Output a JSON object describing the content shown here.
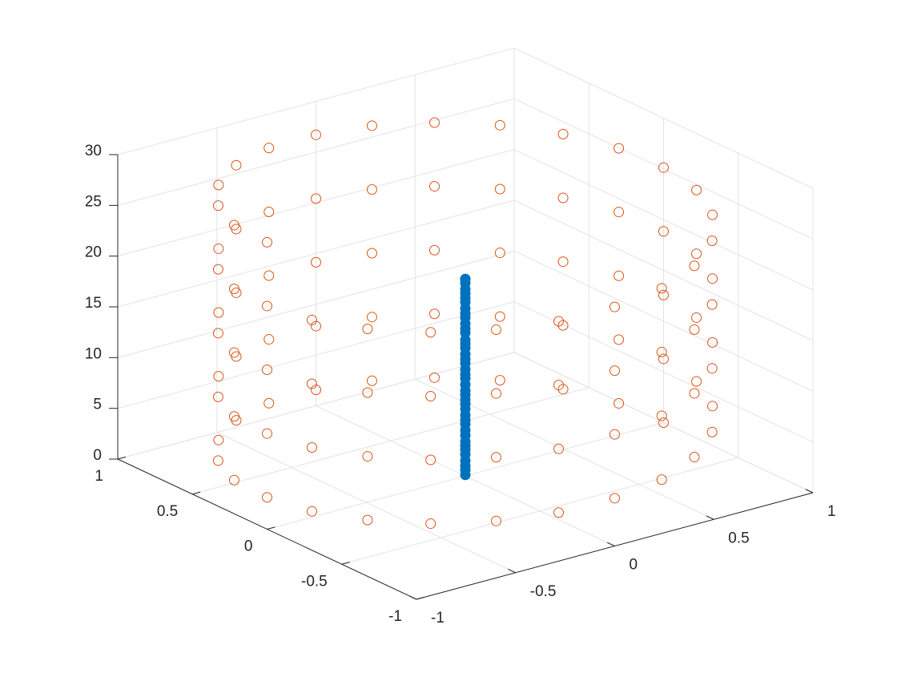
{
  "chart_data": {
    "type": "scatter3",
    "xlim": [
      -1,
      1
    ],
    "ylim": [
      -1,
      1
    ],
    "zlim": [
      0,
      30
    ],
    "xticks": [
      -1,
      -0.5,
      0,
      0.5,
      1
    ],
    "yticks": [
      -1,
      -0.5,
      0,
      0.5,
      1
    ],
    "zticks": [
      0,
      5,
      10,
      15,
      20,
      25,
      30
    ],
    "grid": true,
    "series": [
      {
        "color": "#D95319",
        "filled": false,
        "x": [
          1,
          0.97,
          0.87,
          0.71,
          0.5,
          0.26,
          0,
          -0.26,
          -0.5,
          -0.71,
          -0.87,
          -0.97,
          -1,
          -0.97,
          -0.87,
          -0.71,
          -0.5,
          -0.26,
          0,
          0.26,
          0.5,
          0.71,
          0.87,
          0.97,
          1,
          0.97,
          0.87,
          0.71,
          0.5,
          0.26,
          0,
          -0.26,
          -0.5,
          -0.71,
          -0.87,
          -0.97,
          -1,
          -0.97,
          -0.87,
          -0.71,
          -0.5,
          -0.26,
          0,
          0.26,
          0.5,
          0.71,
          0.87,
          0.97,
          1,
          0.97,
          0.87,
          0.71,
          0.5,
          0.26,
          0,
          -0.26,
          -0.5,
          -0.71,
          -0.87,
          -0.97,
          -1,
          -0.97,
          -0.87,
          -0.71,
          -0.5,
          -0.26,
          0,
          0.26,
          0.5,
          0.71,
          0.87,
          0.97,
          1,
          0.97,
          0.87,
          0.71,
          0.5,
          0.26,
          0,
          -0.26,
          -0.5,
          -0.71,
          -0.87,
          -0.97,
          -1,
          -0.97,
          -0.87,
          -0.71,
          -0.5,
          -0.26,
          0,
          0.26,
          0.5,
          0.71,
          0.87,
          0.97,
          1,
          0.97,
          0.87,
          0.71,
          0.5,
          0.26,
          0,
          -0.26,
          -0.5,
          -0.71,
          -0.87,
          -0.97,
          -1
        ],
        "y": [
          0,
          0.26,
          0.5,
          0.71,
          0.87,
          0.97,
          1,
          0.97,
          0.87,
          0.71,
          0.5,
          0.26,
          0,
          -0.26,
          -0.5,
          -0.71,
          -0.87,
          -0.97,
          -1,
          -0.97,
          -0.87,
          -0.71,
          -0.5,
          -0.26,
          0,
          0.26,
          0.5,
          0.71,
          0.87,
          0.97,
          1,
          0.97,
          0.87,
          0.71,
          0.5,
          0.26,
          0,
          -0.26,
          -0.5,
          -0.71,
          -0.87,
          -0.97,
          -1,
          -0.97,
          -0.87,
          -0.71,
          -0.5,
          -0.26,
          0,
          0.26,
          0.5,
          0.71,
          0.87,
          0.97,
          1,
          0.97,
          0.87,
          0.71,
          0.5,
          0.26,
          0,
          -0.26,
          -0.5,
          -0.71,
          -0.87,
          -0.97,
          -1,
          -0.97,
          -0.87,
          -0.71,
          -0.5,
          -0.26,
          0,
          0.26,
          0.5,
          0.71,
          0.87,
          0.97,
          1,
          0.97,
          0.87,
          0.71,
          0.5,
          0.26,
          0,
          -0.26,
          -0.5,
          -0.71,
          -0.87,
          -0.97,
          -1,
          -0.97,
          -0.87,
          -0.71,
          -0.5,
          -0.26,
          0,
          0.26,
          0.5,
          0.71,
          0.87,
          0.97,
          1,
          0.97,
          0.87,
          0.71,
          0.5,
          0.26,
          0
        ],
        "z": [
          0,
          0.26,
          0.52,
          0.79,
          1.05,
          1.31,
          1.57,
          1.83,
          2.09,
          2.36,
          2.62,
          2.88,
          3.14,
          3.4,
          3.67,
          3.93,
          4.19,
          4.45,
          4.71,
          4.97,
          5.24,
          5.5,
          5.76,
          6.02,
          6.28,
          6.54,
          6.81,
          7.07,
          7.33,
          7.59,
          7.85,
          8.12,
          8.38,
          8.64,
          8.9,
          9.16,
          9.42,
          9.69,
          9.95,
          10.21,
          10.47,
          10.73,
          11,
          11.26,
          11.52,
          11.78,
          12.04,
          12.3,
          12.57,
          12.83,
          13.09,
          13.35,
          13.61,
          13.88,
          14.14,
          14.4,
          14.66,
          14.92,
          15.18,
          15.45,
          15.71,
          15.97,
          16.23,
          16.49,
          16.76,
          17.02,
          17.28,
          17.54,
          17.8,
          18.06,
          18.33,
          18.59,
          18.85,
          19.11,
          19.37,
          19.63,
          19.9,
          20.16,
          20.42,
          20.68,
          20.94,
          21.21,
          21.47,
          21.73,
          21.99,
          22.25,
          22.51,
          22.78,
          23.04,
          23.3,
          23.56,
          23.82,
          24.09,
          24.35,
          24.61,
          24.87,
          25.13,
          25.39,
          25.66,
          25.92,
          26.18,
          26.44,
          26.7,
          26.97,
          27.23,
          27.49,
          27.75,
          28.01,
          28.27
        ]
      },
      {
        "color": "#0072BD",
        "filled": true,
        "x": [
          0,
          0,
          0,
          0,
          0,
          0,
          0,
          0,
          0,
          0,
          0,
          0,
          0,
          0,
          0,
          0,
          0,
          0,
          0,
          0,
          0,
          0,
          0,
          0,
          0,
          0,
          0,
          0,
          0,
          0,
          0,
          0,
          0,
          0,
          0,
          0,
          0,
          0,
          0,
          0,
          0
        ],
        "y": [
          0,
          0,
          0,
          0,
          0,
          0,
          0,
          0,
          0,
          0,
          0,
          0,
          0,
          0,
          0,
          0,
          0,
          0,
          0,
          0,
          0,
          0,
          0,
          0,
          0,
          0,
          0,
          0,
          0,
          0,
          0,
          0,
          0,
          0,
          0,
          0,
          0,
          0,
          0,
          0,
          0
        ],
        "z": [
          0.1,
          0.6,
          1,
          1.5,
          2.1,
          2.6,
          3,
          3.4,
          4,
          4.5,
          5.1,
          5.5,
          6,
          6.6,
          7.1,
          7.5,
          8,
          8.4,
          9,
          9.6,
          10,
          10.5,
          11.1,
          11.5,
          12,
          12.6,
          13,
          13.4,
          14.1,
          14.5,
          15,
          15.6,
          16,
          16.5,
          17.1,
          17.5,
          18,
          18.4,
          19,
          19.4,
          19.4
        ]
      }
    ]
  }
}
